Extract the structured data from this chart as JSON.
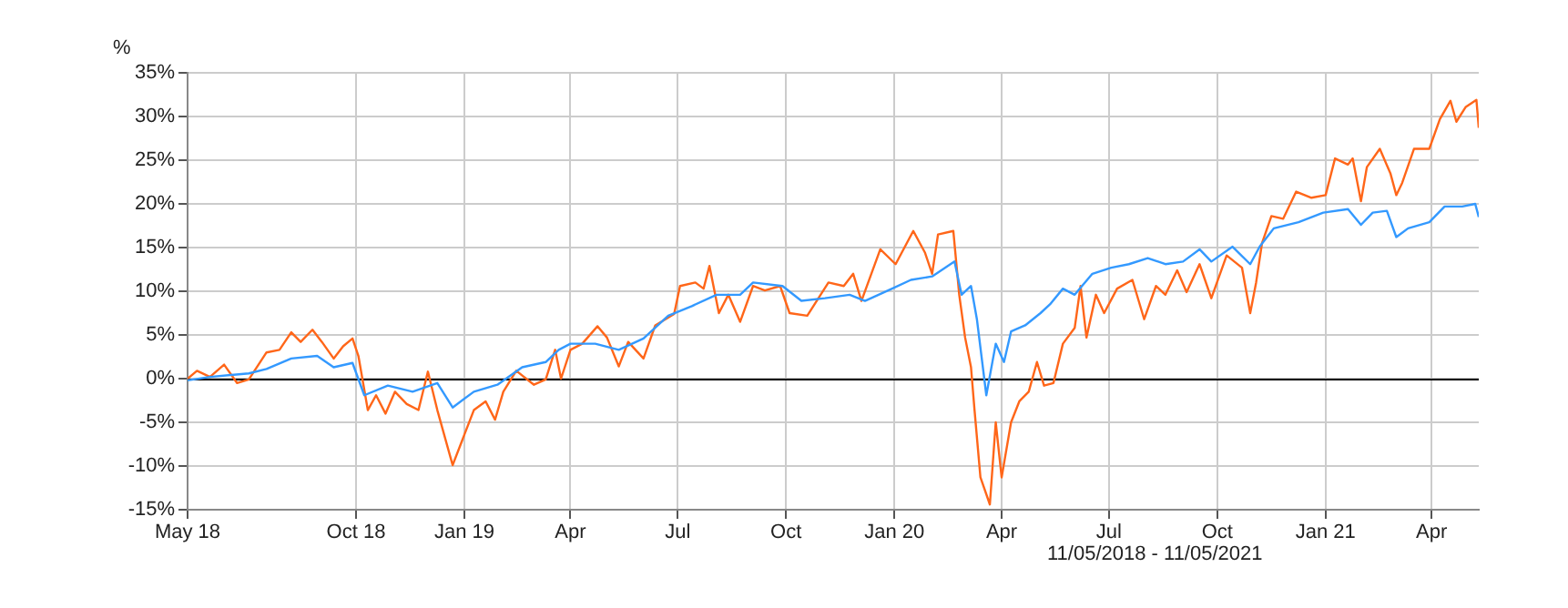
{
  "chart_data": {
    "type": "line",
    "ylabel": "%",
    "xlim": [
      "2018-05-11",
      "2021-05-11"
    ],
    "xticks": [
      {
        "value": "2018-05-11",
        "label": "May 18"
      },
      {
        "value": "2018-10-01",
        "label": "Oct 18"
      },
      {
        "value": "2019-01-01",
        "label": "Jan 19"
      },
      {
        "value": "2019-04-01",
        "label": "Apr"
      },
      {
        "value": "2019-07-01",
        "label": "Jul"
      },
      {
        "value": "2019-10-01",
        "label": "Oct"
      },
      {
        "value": "2020-01-01",
        "label": "Jan 20"
      },
      {
        "value": "2020-04-01",
        "label": "Apr"
      },
      {
        "value": "2020-07-01",
        "label": "Jul"
      },
      {
        "value": "2020-10-01",
        "label": "Oct"
      },
      {
        "value": "2021-01-01",
        "label": "Jan 21"
      },
      {
        "value": "2021-04-01",
        "label": "Apr"
      }
    ],
    "ylim": [
      -15,
      35
    ],
    "yticks": [
      {
        "value": -15,
        "label": "-15%"
      },
      {
        "value": -10,
        "label": "-10%"
      },
      {
        "value": -5,
        "label": "-5%"
      },
      {
        "value": 0,
        "label": "0%"
      },
      {
        "value": 5,
        "label": "5%"
      },
      {
        "value": 10,
        "label": "10%"
      },
      {
        "value": 15,
        "label": "15%"
      },
      {
        "value": 20,
        "label": "20%"
      },
      {
        "value": 25,
        "label": "25%"
      },
      {
        "value": 30,
        "label": "30%"
      },
      {
        "value": 35,
        "label": "35%"
      }
    ],
    "grid": true,
    "ref_lines": [
      {
        "axis": "y",
        "value": 0,
        "color": "#000000"
      }
    ],
    "annotations": [
      "11/05/2018 - 11/05/2021"
    ],
    "series": [
      {
        "color": "#3399ff",
        "x": [
          "2018-05-11",
          "2018-05-30",
          "2018-07-02",
          "2018-07-17",
          "2018-08-07",
          "2018-08-29",
          "2018-09-12",
          "2018-09-28",
          "2018-10-08",
          "2018-10-28",
          "2018-11-18",
          "2018-12-09",
          "2018-12-22",
          "2019-01-09",
          "2019-01-29",
          "2019-02-19",
          "2019-03-11",
          "2019-03-22",
          "2019-04-01",
          "2019-04-22",
          "2019-05-12",
          "2019-06-02",
          "2019-06-23",
          "2019-07-13",
          "2019-08-03",
          "2019-08-23",
          "2019-09-03",
          "2019-09-28",
          "2019-10-14",
          "2019-11-03",
          "2019-11-24",
          "2019-12-07",
          "2019-12-30",
          "2020-01-15",
          "2020-02-02",
          "2020-02-21",
          "2020-02-27",
          "2020-03-06",
          "2020-03-11",
          "2020-03-19",
          "2020-03-27",
          "2020-04-03",
          "2020-04-09",
          "2020-04-21",
          "2020-05-04",
          "2020-05-12",
          "2020-05-23",
          "2020-06-02",
          "2020-06-17",
          "2020-07-03",
          "2020-07-18",
          "2020-08-03",
          "2020-08-18",
          "2020-09-02",
          "2020-09-16",
          "2020-09-26",
          "2020-10-14",
          "2020-10-29",
          "2020-11-06",
          "2020-11-18",
          "2020-12-09",
          "2020-12-30",
          "2021-01-20",
          "2021-01-31",
          "2021-02-10",
          "2021-02-22",
          "2021-03-02",
          "2021-03-12",
          "2021-03-30",
          "2021-04-12",
          "2021-04-27",
          "2021-05-08",
          "2021-05-11"
        ],
        "values": [
          -0.2,
          0.2,
          0.6,
          1.1,
          2.3,
          2.6,
          1.3,
          1.8,
          -1.9,
          -0.8,
          -1.5,
          -0.5,
          -3.3,
          -1.5,
          -0.7,
          1.3,
          1.9,
          3.3,
          4.0,
          4.0,
          3.3,
          4.6,
          7.2,
          8.3,
          9.6,
          9.6,
          11.0,
          10.6,
          8.9,
          9.2,
          9.6,
          8.9,
          10.3,
          11.3,
          11.7,
          13.4,
          9.6,
          10.6,
          6.8,
          -1.9,
          4.0,
          1.9,
          5.4,
          6.1,
          7.5,
          8.5,
          10.3,
          9.6,
          12.0,
          12.7,
          13.1,
          13.8,
          13.1,
          13.4,
          14.8,
          13.4,
          15.1,
          13.1,
          15.1,
          17.2,
          17.9,
          19.0,
          19.4,
          17.6,
          19.0,
          19.2,
          16.2,
          17.2,
          17.9,
          19.7,
          19.7,
          20.0,
          18.5
        ]
      },
      {
        "color": "#ff6619",
        "x": [
          "2018-05-11",
          "2018-05-19",
          "2018-05-30",
          "2018-06-11",
          "2018-06-22",
          "2018-07-02",
          "2018-07-17",
          "2018-07-28",
          "2018-08-07",
          "2018-08-15",
          "2018-08-25",
          "2018-09-02",
          "2018-09-12",
          "2018-09-20",
          "2018-09-28",
          "2018-10-03",
          "2018-10-11",
          "2018-10-18",
          "2018-10-26",
          "2018-11-03",
          "2018-11-13",
          "2018-11-23",
          "2018-12-01",
          "2018-12-09",
          "2018-12-22",
          "2019-01-01",
          "2019-01-09",
          "2019-01-19",
          "2019-01-27",
          "2019-02-03",
          "2019-02-14",
          "2019-03-01",
          "2019-03-11",
          "2019-03-19",
          "2019-03-24",
          "2019-04-01",
          "2019-04-11",
          "2019-04-24",
          "2019-05-02",
          "2019-05-12",
          "2019-05-20",
          "2019-06-02",
          "2019-06-12",
          "2019-06-28",
          "2019-07-03",
          "2019-07-16",
          "2019-07-23",
          "2019-07-28",
          "2019-08-05",
          "2019-08-13",
          "2019-08-23",
          "2019-09-03",
          "2019-09-13",
          "2019-09-26",
          "2019-10-04",
          "2019-10-19",
          "2019-11-06",
          "2019-11-19",
          "2019-11-27",
          "2019-12-04",
          "2019-12-20",
          "2020-01-02",
          "2020-01-17",
          "2020-01-27",
          "2020-02-02",
          "2020-02-07",
          "2020-02-20",
          "2020-02-25",
          "2020-03-01",
          "2020-03-06",
          "2020-03-09",
          "2020-03-14",
          "2020-03-22",
          "2020-03-27",
          "2020-04-01",
          "2020-04-09",
          "2020-04-16",
          "2020-04-24",
          "2020-05-01",
          "2020-05-07",
          "2020-05-15",
          "2020-05-23",
          "2020-06-02",
          "2020-06-07",
          "2020-06-12",
          "2020-06-20",
          "2020-06-27",
          "2020-07-08",
          "2020-07-21",
          "2020-07-31",
          "2020-08-10",
          "2020-08-18",
          "2020-08-28",
          "2020-09-05",
          "2020-09-16",
          "2020-09-26",
          "2020-10-09",
          "2020-10-22",
          "2020-10-29",
          "2020-11-03",
          "2020-11-08",
          "2020-11-16",
          "2020-11-26",
          "2020-12-07",
          "2020-12-20",
          "2021-01-01",
          "2021-01-09",
          "2021-01-20",
          "2021-01-24",
          "2021-01-31",
          "2021-02-05",
          "2021-02-16",
          "2021-02-25",
          "2021-03-02",
          "2021-03-07",
          "2021-03-17",
          "2021-03-30",
          "2021-04-08",
          "2021-04-17",
          "2021-04-22",
          "2021-04-30",
          "2021-05-09",
          "2021-05-11"
        ],
        "values": [
          0,
          0.9,
          0.2,
          1.6,
          -0.5,
          -0.1,
          3.0,
          3.3,
          5.3,
          4.2,
          5.6,
          4.2,
          2.3,
          3.7,
          4.6,
          2.6,
          -3.6,
          -1.9,
          -4.0,
          -1.5,
          -2.9,
          -3.6,
          0.8,
          -3.6,
          -9.9,
          -6.4,
          -3.6,
          -2.6,
          -4.7,
          -1.5,
          0.9,
          -0.7,
          -0.1,
          3.3,
          0,
          3.3,
          4.0,
          6.0,
          4.7,
          1.4,
          4.2,
          2.3,
          6.1,
          7.4,
          10.6,
          11.0,
          10.3,
          12.9,
          7.5,
          9.6,
          6.5,
          10.6,
          10.1,
          10.6,
          7.5,
          7.2,
          11.0,
          10.6,
          12.0,
          8.9,
          14.8,
          13.1,
          16.9,
          14.4,
          12.0,
          16.5,
          16.9,
          9.6,
          4.7,
          1.3,
          -3.6,
          -11.3,
          -14.4,
          -5.0,
          -11.3,
          -5.0,
          -2.6,
          -1.5,
          1.9,
          -0.8,
          -0.5,
          4.0,
          5.8,
          10.6,
          4.7,
          9.6,
          7.5,
          10.3,
          11.3,
          6.8,
          10.6,
          9.6,
          12.4,
          9.9,
          13.1,
          9.2,
          14.1,
          12.7,
          7.5,
          11.0,
          15.5,
          18.6,
          18.3,
          21.4,
          20.7,
          21.0,
          25.2,
          24.5,
          25.2,
          20.3,
          24.2,
          26.3,
          23.5,
          21.0,
          22.4,
          26.3,
          26.3,
          29.7,
          31.8,
          29.4,
          31.1,
          31.9,
          28.7
        ]
      }
    ]
  }
}
